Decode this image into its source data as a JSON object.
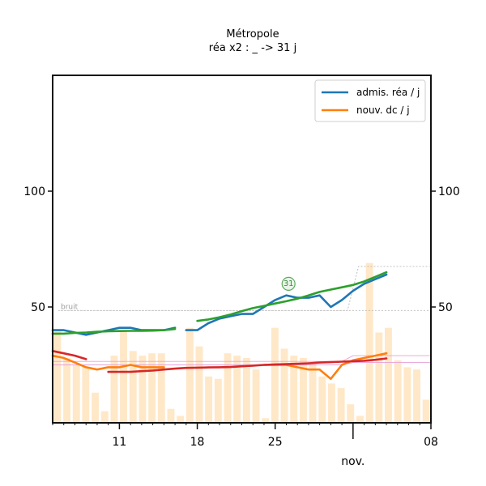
{
  "chart_data": {
    "type": "bar",
    "title": "Métropole",
    "subtitle": "réa x2 : _ -> 31 j",
    "yticks": [
      50,
      100
    ],
    "ylim": [
      0,
      150
    ],
    "xlim": [
      0,
      34
    ],
    "x_ticks": [
      {
        "x": 6,
        "label": "11"
      },
      {
        "x": 13,
        "label": "18"
      },
      {
        "x": 20,
        "label": "25"
      },
      {
        "x": 27,
        "label": ""
      },
      {
        "x": 34,
        "label": "08"
      }
    ],
    "x_sublabel": "nov.",
    "x_sublabel_x": 27,
    "noise_label": "bruit",
    "badge": {
      "x": 21.2,
      "y": 60,
      "text": "31"
    },
    "legend": [
      {
        "label": "admis. réa / j",
        "color": "#1f77b4"
      },
      {
        "label": "nouv. dc / j",
        "color": "#ff7f0e"
      }
    ],
    "bars": {
      "color": "#ffe8c8",
      "values": [
        40,
        28,
        25,
        24,
        13,
        5,
        29,
        40,
        31,
        29,
        30,
        30,
        6,
        3,
        41,
        33,
        20,
        19,
        30,
        29,
        28,
        23,
        2,
        41,
        32,
        29,
        28,
        26,
        20,
        17,
        15,
        8,
        3,
        69,
        39,
        41,
        27,
        24,
        23,
        10
      ]
    },
    "series": [
      {
        "name": "admis. réa / j",
        "color": "#1f77b4",
        "segments": [
          {
            "x": [
              0,
              1,
              2,
              3,
              4,
              5,
              6,
              7,
              8,
              9,
              10,
              11
            ],
            "y": [
              40,
              40,
              39,
              38,
              39,
              40,
              41,
              41,
              40,
              40,
              40,
              41
            ]
          },
          {
            "x": [
              12,
              13,
              14,
              15,
              16,
              17,
              18,
              19,
              20,
              21,
              22,
              23,
              24,
              25,
              26,
              27,
              28,
              29,
              30
            ],
            "y": [
              40,
              40,
              43,
              45,
              46,
              47,
              47,
              50,
              53,
              55,
              54,
              54,
              55,
              50,
              53,
              57,
              60,
              62,
              64
            ]
          }
        ]
      },
      {
        "name": "nouv. dc / j",
        "color": "#ff7f0e",
        "segments": [
          {
            "x": [
              0,
              1,
              2,
              3,
              4,
              5,
              6,
              7,
              8,
              9,
              10
            ],
            "y": [
              29,
              28,
              26,
              24,
              23,
              24,
              24,
              25,
              24,
              24,
              24
            ]
          },
          {
            "x": [
              19,
              20,
              21,
              22,
              23,
              24,
              25,
              26,
              27,
              28,
              29,
              30
            ],
            "y": [
              25,
              25,
              25,
              24,
              23,
              23,
              19,
              25,
              27,
              28,
              29,
              30
            ]
          }
        ]
      },
      {
        "name": "",
        "color": "#2ca02c",
        "segments": [
          {
            "x": [
              0,
              1,
              2,
              3,
              4,
              5,
              6,
              7,
              8,
              9,
              10,
              11
            ],
            "y": [
              38.5,
              38.5,
              38.8,
              39,
              39.3,
              39.5,
              39.6,
              39.7,
              39.7,
              39.8,
              40,
              40.5
            ]
          },
          {
            "x": [
              13,
              14,
              15,
              16,
              17,
              18,
              19,
              20,
              21,
              22,
              23,
              24,
              25,
              26,
              27,
              28,
              29,
              30
            ],
            "y": [
              44,
              44.6,
              45.6,
              46.8,
              48.2,
              49.5,
              50.5,
              51.5,
              52.5,
              53.6,
              55,
              56.5,
              57.5,
              58.5,
              59.5,
              61,
              63,
              65
            ]
          }
        ]
      },
      {
        "name": "",
        "color": "#d62728",
        "segments": [
          {
            "x": [
              0,
              1,
              2,
              3
            ],
            "y": [
              31,
              30,
              29,
              27.5
            ]
          },
          {
            "x": [
              5,
              6,
              7,
              8,
              9,
              10,
              11,
              12,
              13,
              14,
              15,
              16,
              17,
              18,
              19,
              20,
              21,
              22,
              23,
              24,
              25,
              26,
              27,
              28,
              29,
              30
            ],
            "y": [
              22,
              22,
              22,
              22.3,
              22.6,
              23,
              23.4,
              23.7,
              23.8,
              23.9,
              24,
              24.1,
              24.4,
              24.7,
              25,
              25.2,
              25.3,
              25.5,
              25.7,
              26,
              26.2,
              26.4,
              26.6,
              26.8,
              27.2,
              27.8
            ]
          }
        ]
      }
    ],
    "noise_bands": [
      {
        "color": "#b8b8b8",
        "x": [
          0.5,
          26.5,
          27.5,
          34
        ],
        "top": [
          48.5,
          48.5,
          67.5,
          67.5
        ],
        "bottom": [
          48.5,
          48.5,
          48.5,
          48.5
        ]
      },
      {
        "color": "#e8a0d8",
        "x": [
          0,
          26,
          27,
          34
        ],
        "top": [
          26.5,
          26.5,
          29,
          29
        ],
        "bottom": [
          25,
          25,
          26,
          26
        ]
      }
    ]
  }
}
